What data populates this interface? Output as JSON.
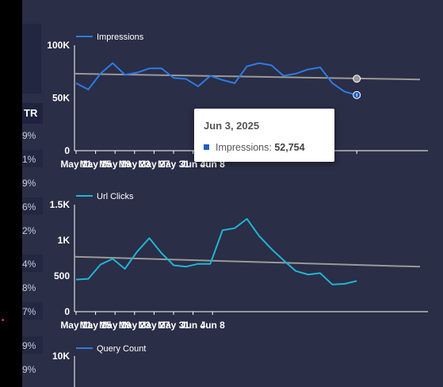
{
  "side": {
    "ctr_label": "TR",
    "values": [
      "9%",
      "1%",
      "9%",
      "6%",
      "2%",
      "4%",
      "8%",
      "7%",
      "9%",
      "9%"
    ]
  },
  "colors": {
    "impressions": "#2f7ae5",
    "clicks": "#1fb5d4",
    "query": "#2f7ae5",
    "trend": "#9a9a9a",
    "axis": "#ffffff",
    "background": "#2a2e46"
  },
  "chart_data": [
    {
      "type": "line",
      "legend": "Impressions",
      "x_ticks": [
        "May 11",
        "May 15",
        "May 19",
        "May 23",
        "May 27",
        "May 31",
        "Jun 4",
        "Jun 8"
      ],
      "y_ticks": [
        "0",
        "50K",
        "100K"
      ],
      "ylim": [
        0,
        100000
      ],
      "x_start_day": 0,
      "values": [
        64000,
        58000,
        73000,
        83000,
        72000,
        74000,
        78000,
        78000,
        69000,
        68000,
        61000,
        71000,
        67000,
        64000,
        80000,
        83000,
        81000,
        71000,
        73000,
        77000,
        79000,
        64000,
        56000,
        52754
      ],
      "trend": [
        73000,
        67500
      ],
      "tooltip": {
        "date": "Jun 3, 2025",
        "series": "Impressions",
        "value": "52,754"
      }
    },
    {
      "type": "line",
      "legend": "Url Clicks",
      "x_ticks": [
        "May 11",
        "May 15",
        "May 19",
        "May 23",
        "May 27",
        "May 31",
        "Jun 4",
        "Jun 8"
      ],
      "y_ticks": [
        "0",
        "500",
        "1K",
        "1.5K"
      ],
      "ylim": [
        0,
        1500
      ],
      "values": [
        450,
        460,
        660,
        740,
        600,
        840,
        1030,
        820,
        650,
        630,
        670,
        670,
        1140,
        1170,
        1300,
        1060,
        880,
        720,
        570,
        520,
        540,
        380,
        390,
        430
      ],
      "trend": [
        770,
        630
      ]
    },
    {
      "type": "line",
      "legend": "Query Count",
      "y_ticks": [
        "10K"
      ],
      "ylim": [
        0,
        10000
      ]
    }
  ]
}
